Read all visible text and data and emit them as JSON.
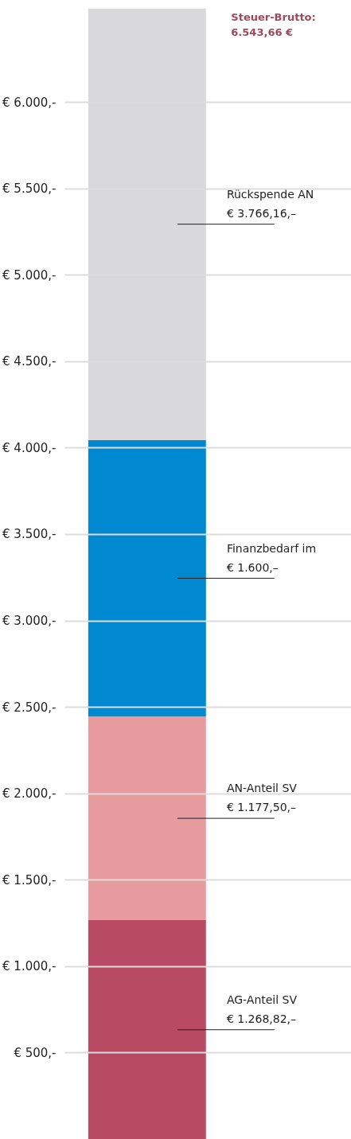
{
  "chart_data": {
    "type": "bar",
    "stacked": true,
    "categories": [
      null
    ],
    "series": [
      {
        "name": "AG-Anteil SV",
        "color": "#b84a63",
        "values": [
          1268.82
        ],
        "value_labels": [
          "€ 1.268,82,–"
        ]
      },
      {
        "name": "AN-Anteil SV",
        "color": "#e89b9e",
        "values": [
          1177.5
        ],
        "value_labels": [
          "€ 1.177,50,–"
        ]
      },
      {
        "name": "Finanzbedarf im",
        "color": "#0089d0",
        "values": [
          1600
        ],
        "value_labels": [
          "€ 1.600,–"
        ]
      },
      {
        "name": "Rückspende AN",
        "color": "#d9d9db",
        "values": [
          2497.34
        ]
      }
    ],
    "annotations": [
      "€ 3.766,16,–",
      "Steuer-Brutto:\n6.543,66 €"
    ],
    "ylim": [
      0,
      6543.66
    ],
    "yticks": [
      {
        "value": 500,
        "label": "€ 500,-"
      },
      {
        "value": 1000,
        "label": "€ 1.000,-"
      },
      {
        "value": 1500,
        "label": "€ 1.500,-"
      },
      {
        "value": 2000,
        "label": "€ 2.000,-"
      },
      {
        "value": 2500,
        "label": "€ 2.500,-"
      },
      {
        "value": 3000,
        "label": "€ 3.000,-"
      },
      {
        "value": 3500,
        "label": "€ 3.500,-"
      },
      {
        "value": 4000,
        "label": "€ 4.000,-"
      },
      {
        "value": 4500,
        "label": "€ 4.500,-"
      },
      {
        "value": 5000,
        "label": "€ 5.000,-"
      },
      {
        "value": 5500,
        "label": "€ 5.500,-"
      },
      {
        "value": 6000,
        "label": "€ 6.000,-"
      }
    ],
    "grid": "y"
  }
}
